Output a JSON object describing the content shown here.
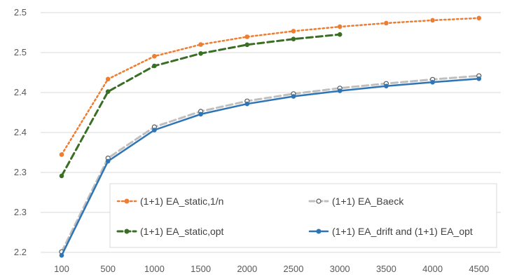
{
  "chart_data": {
    "type": "line",
    "title": "",
    "xlabel": "",
    "ylabel": "",
    "categories": [
      "100",
      "500",
      "1000",
      "1500",
      "2000",
      "2500",
      "3000",
      "3500",
      "4000",
      "4500"
    ],
    "y_tick_labels": [
      "2.2",
      "2.3",
      "2.3",
      "2.4",
      "2.4",
      "2.5",
      "2.5"
    ],
    "ylim": [
      2.2,
      2.5
    ],
    "grid": "horizontal",
    "legend_position": "inside-bottom-right",
    "series": [
      {
        "name": "(1+1) EA_static,1/n",
        "color": "#ED7D31",
        "style": "dotted",
        "marker": "filled-circle",
        "values": [
          2.3224,
          2.4168,
          2.4454,
          2.4601,
          2.4697,
          2.4768,
          2.4824,
          2.4868,
          2.4904,
          2.4932
        ]
      },
      {
        "name": "(1+1) EA_Baeck",
        "color": "#BFBFBF",
        "style": "dashed",
        "marker": "open-circle",
        "values": [
          2.2007,
          2.3179,
          2.3569,
          2.3764,
          2.3893,
          2.3984,
          2.4054,
          2.4112,
          2.4164,
          2.4209
        ]
      },
      {
        "name": "(1+1) EA_static,opt",
        "color": "#3A6E25",
        "style": "dashed",
        "marker": "filled-circle",
        "values": [
          2.2957,
          2.4011,
          2.4333,
          2.4489,
          2.4598,
          2.4669,
          2.4726,
          null,
          null,
          null
        ]
      },
      {
        "name": "(1+1) EA_drift and (1+1) EA_opt",
        "color": "#2E75B6",
        "style": "solid",
        "marker": "filled-circle",
        "values": [
          2.1962,
          2.3141,
          2.3531,
          2.3729,
          2.3858,
          2.3952,
          2.4021,
          2.4081,
          2.4129,
          2.4173
        ]
      }
    ]
  }
}
